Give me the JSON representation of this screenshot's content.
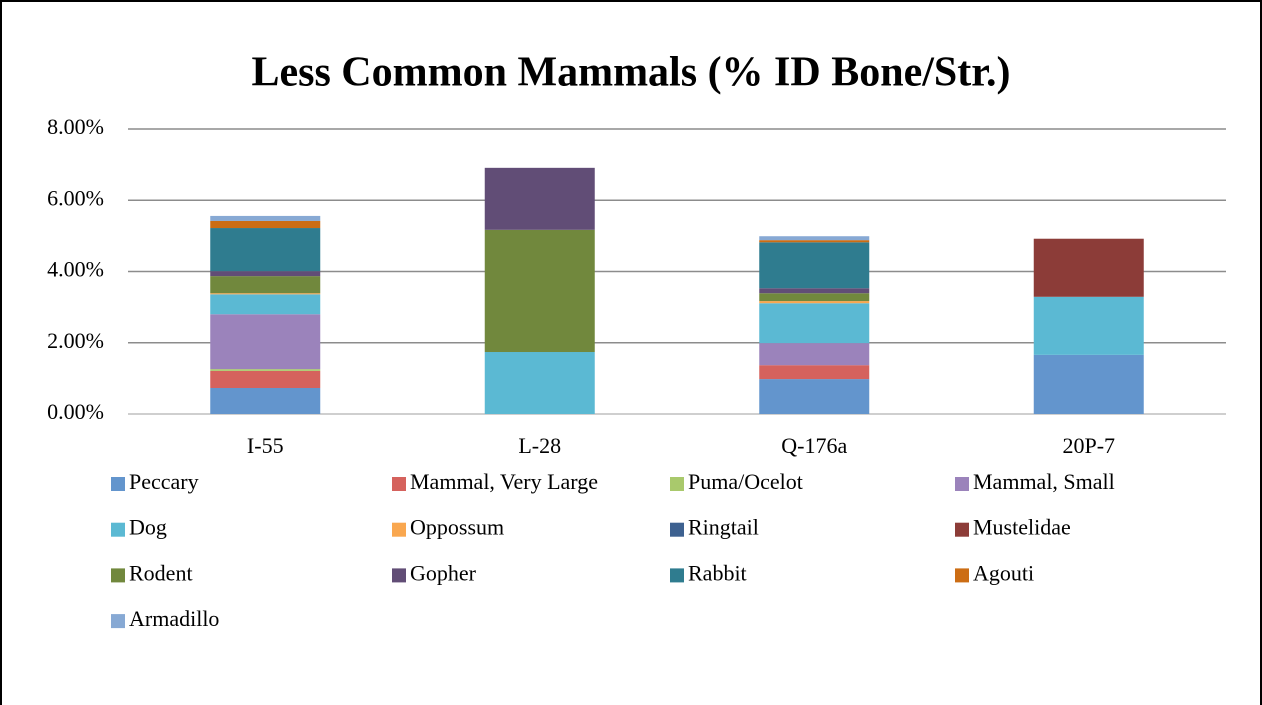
{
  "chart_data": {
    "type": "stacked_bar",
    "title": "Less Common Mammals (% ID Bone/Str.)",
    "categories": [
      "I-55",
      "L-28",
      "Q-176a",
      "20P-7"
    ],
    "series": [
      {
        "name": "Peccary",
        "color": "#6395cd",
        "values": [
          0.73,
          0,
          0.98,
          1.66
        ]
      },
      {
        "name": "Mammal, Very Large",
        "color": "#d5625d",
        "values": [
          0.48,
          0,
          0.39,
          0
        ]
      },
      {
        "name": "Puma/Ocelot",
        "color": "#a9c96c",
        "values": [
          0.05,
          0,
          0,
          0
        ]
      },
      {
        "name": "Mammal, Small",
        "color": "#9b83bb",
        "values": [
          1.54,
          0,
          0.62,
          0
        ]
      },
      {
        "name": "Dog",
        "color": "#5bb9d3",
        "values": [
          0.56,
          1.74,
          1.12,
          1.63
        ]
      },
      {
        "name": "Oppossum",
        "color": "#f9a74f",
        "values": [
          0.03,
          0,
          0.06,
          0
        ]
      },
      {
        "name": "Ringtail",
        "color": "#3d6190",
        "values": [
          0,
          0,
          0,
          0
        ]
      },
      {
        "name": "Mustelidae",
        "color": "#8c3c38",
        "values": [
          0,
          0,
          0,
          1.63
        ]
      },
      {
        "name": "Rodent",
        "color": "#71883d",
        "values": [
          0.48,
          3.43,
          0.22,
          0
        ]
      },
      {
        "name": "Gopher",
        "color": "#614d76",
        "values": [
          0.14,
          1.74,
          0.14,
          0
        ]
      },
      {
        "name": "Rabbit",
        "color": "#2f7c8f",
        "values": [
          1.21,
          0,
          1.29,
          0
        ]
      },
      {
        "name": "Agouti",
        "color": "#cc6d14",
        "values": [
          0.2,
          0,
          0.06,
          0
        ]
      },
      {
        "name": "Armadillo",
        "color": "#87a9d4",
        "values": [
          0.14,
          0,
          0.11,
          0
        ]
      }
    ],
    "ylim": [
      0,
      8
    ],
    "yticks": [
      {
        "value": 0,
        "label": "0.00%"
      },
      {
        "value": 2,
        "label": "2.00%"
      },
      {
        "value": 4,
        "label": "4.00%"
      },
      {
        "value": 6,
        "label": "6.00%"
      },
      {
        "value": 8,
        "label": "8.00%"
      }
    ],
    "grid": true,
    "legend": "bottom"
  }
}
